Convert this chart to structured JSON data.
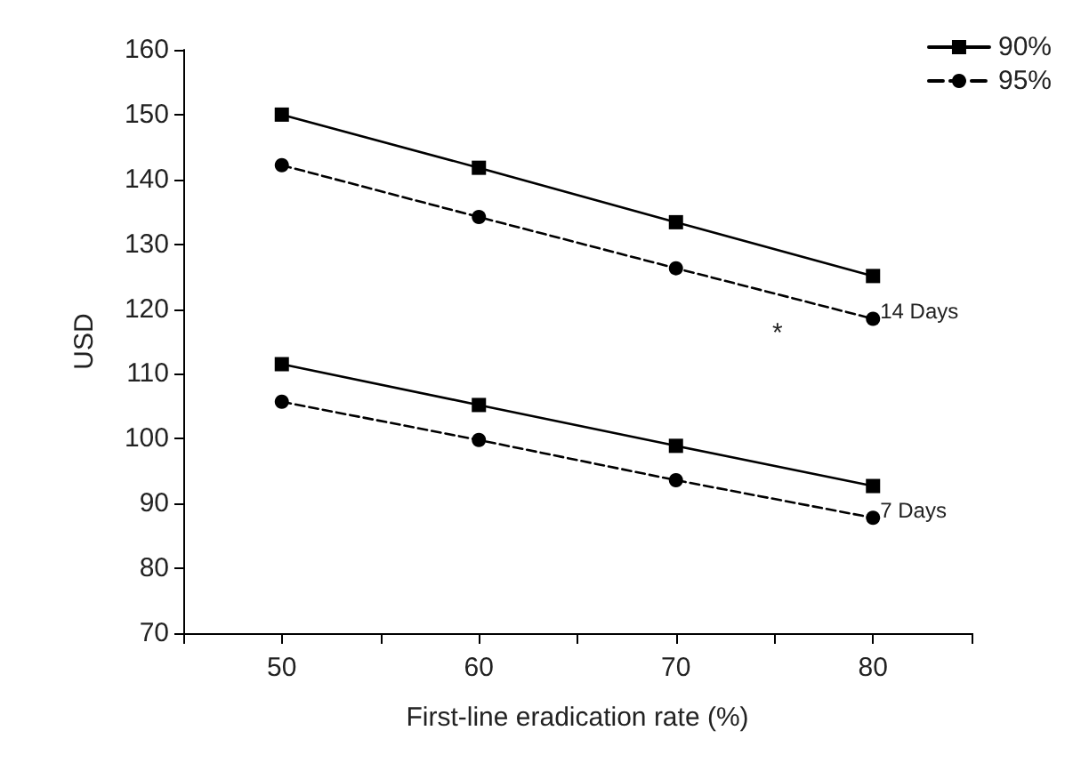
{
  "chart_data": {
    "type": "line",
    "xlabel": "First-line eradication rate (%)",
    "ylabel": "USD",
    "x": [
      50,
      60,
      70,
      80
    ],
    "series": [
      {
        "name": "90%",
        "color": "#000000",
        "marker": "square",
        "line_style": "solid",
        "values": [
          150,
          141.8,
          133.4,
          125.1
        ]
      },
      {
        "name": "95%",
        "color": "#000000",
        "marker": "circle",
        "line_style": "dashed",
        "values": [
          142.2,
          134.2,
          126.3,
          118.5
        ]
      },
      {
        "color": "#000000",
        "marker": "square",
        "line_style": "solid",
        "values": [
          111.5,
          105.2,
          98.9,
          92.7
        ]
      },
      {
        "color": "#000000",
        "marker": "circle",
        "line_style": "dashed",
        "values": [
          105.7,
          99.8,
          93.6,
          87.8
        ]
      }
    ],
    "xlim": [
      45,
      85
    ],
    "xticks": [
      {
        "value": 45,
        "label": null
      },
      50,
      {
        "value": 55,
        "label": null
      },
      60,
      {
        "value": 65,
        "label": null
      },
      70,
      {
        "value": 75,
        "label": null
      },
      80,
      {
        "value": 85,
        "label": null
      }
    ],
    "ylim": [
      70,
      160
    ],
    "yticks": [
      70,
      80,
      90,
      100,
      110,
      120,
      130,
      140,
      150,
      160
    ],
    "annotations": [
      {
        "text": "14 Days",
        "x": 80,
        "y": 118.5
      },
      {
        "text": "7 Days",
        "x": 80,
        "y": 87.8
      },
      "*"
    ],
    "grid": false,
    "legend": "top right"
  }
}
